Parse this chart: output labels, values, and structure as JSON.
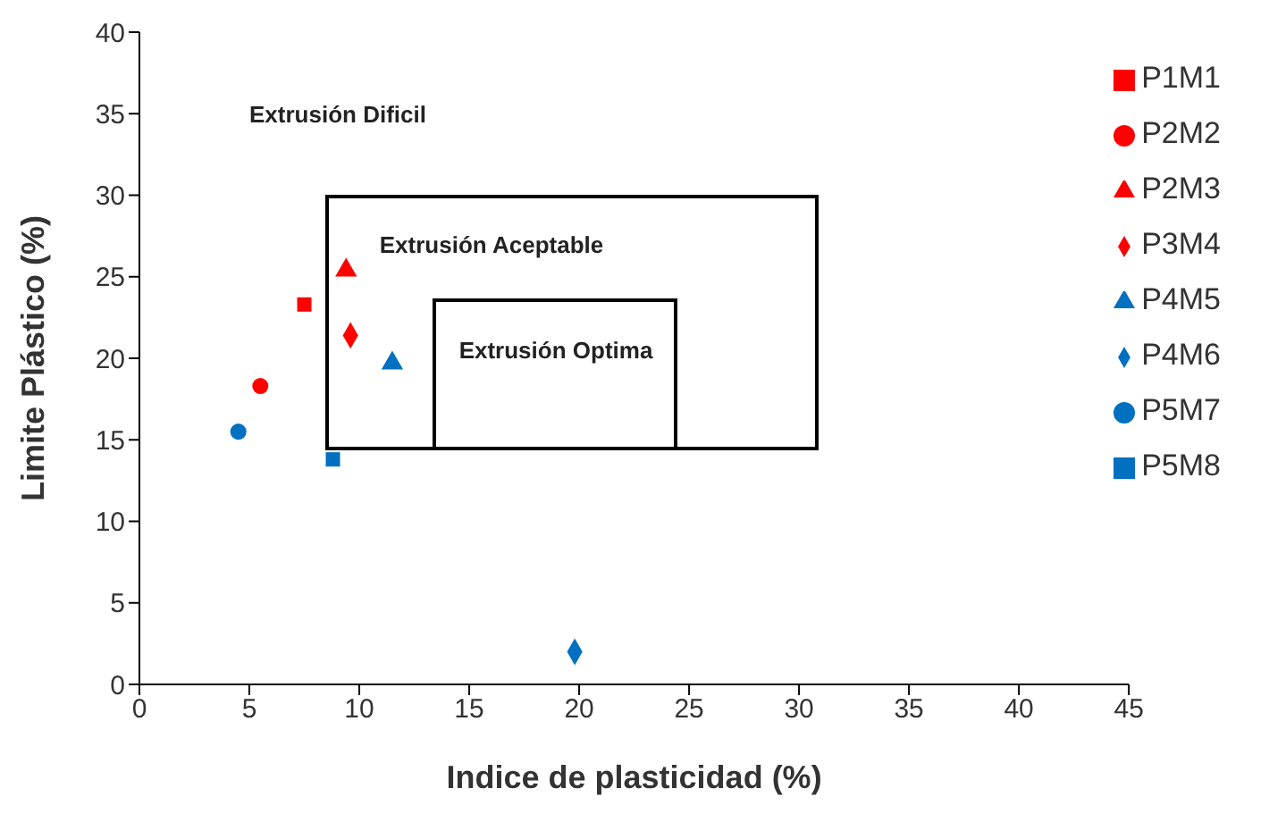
{
  "chart_data": {
    "type": "scatter",
    "xlabel": "Indice de plasticidad (%)",
    "ylabel": "Limite Plástico (%)",
    "xlim": [
      0,
      45
    ],
    "xticks": [
      0,
      5,
      10,
      15,
      20,
      25,
      30,
      35,
      40,
      45
    ],
    "ylim": [
      0,
      40
    ],
    "yticks": [
      0,
      5,
      10,
      15,
      20,
      25,
      30,
      35,
      40
    ],
    "grid": false,
    "legend": "top right",
    "series": [
      {
        "name": "P1M1",
        "color": "#ff0000",
        "marker": "square",
        "x": [
          7.5
        ],
        "values": [
          23.3
        ]
      },
      {
        "name": "P2M2",
        "color": "#ff0000",
        "marker": "circle",
        "x": [
          5.5
        ],
        "values": [
          18.3
        ]
      },
      {
        "name": "P2M3",
        "color": "#ff0000",
        "marker": "triangle",
        "x": [
          9.4
        ],
        "values": [
          25.4
        ]
      },
      {
        "name": "P3M4",
        "color": "#ff0000",
        "marker": "diamond",
        "x": [
          9.6
        ],
        "values": [
          21.4
        ]
      },
      {
        "name": "P4M5",
        "color": "#0070c0",
        "marker": "triangle",
        "x": [
          11.5
        ],
        "values": [
          19.7
        ]
      },
      {
        "name": "P4M6",
        "color": "#0070c0",
        "marker": "diamond",
        "x": [
          19.8
        ],
        "values": [
          2.0
        ]
      },
      {
        "name": "P5M7",
        "color": "#0070c0",
        "marker": "circle",
        "x": [
          4.5
        ],
        "values": [
          15.5
        ]
      },
      {
        "name": "P5M8",
        "color": "#0070c0",
        "marker": "square",
        "x": [
          8.8
        ],
        "values": [
          13.8
        ]
      }
    ],
    "annotations": [
      "Extrusión Dificil",
      "Extrusión Aceptable",
      "Extrusión Optima"
    ]
  }
}
